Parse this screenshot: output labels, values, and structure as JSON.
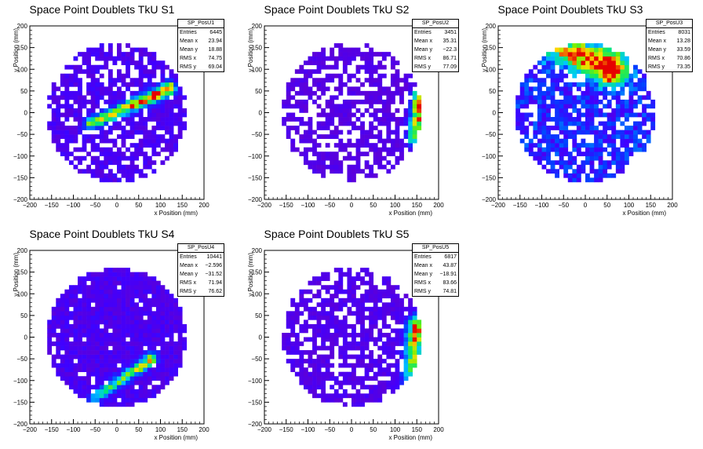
{
  "chart_data": [
    {
      "type": "heatmap",
      "title": "Space Point Doublets TkU S1",
      "xlabel": "x Position (mm)",
      "ylabel": "y Position (mm)",
      "xlim": [
        -200,
        200
      ],
      "ylim": [
        -200,
        200
      ],
      "xticks": [
        "−200",
        "−150",
        "−100",
        "−50",
        "0",
        "50",
        "100",
        "150",
        "200"
      ],
      "yticks": [
        "200",
        "150",
        "100",
        "50",
        "0",
        "−50",
        "−100",
        "−150",
        "−200"
      ],
      "bins": 40,
      "disk_radius": 160,
      "band": {
        "kind": "line",
        "x0": -60,
        "y0": -25,
        "x1": 120,
        "y1": 55,
        "peak": 1.0,
        "width": 10
      },
      "background_density": 0.12,
      "empty_fraction": 0.28,
      "stats": {
        "name": "SP_PosU1",
        "rows": [
          {
            "label": "Entries",
            "value": "6445"
          },
          {
            "label": "Mean x",
            "value": "23.94"
          },
          {
            "label": "Mean y",
            "value": "18.88"
          },
          {
            "label": "RMS x",
            "value": "74.75"
          },
          {
            "label": "RMS y",
            "value": "69.04"
          }
        ]
      }
    },
    {
      "type": "heatmap",
      "title": "Space Point Doublets TkU S2",
      "xlabel": "x Position (mm)",
      "ylabel": "y Position (mm)",
      "xlim": [
        -200,
        200
      ],
      "ylim": [
        -200,
        200
      ],
      "xticks": [
        "−200",
        "−150",
        "−100",
        "−50",
        "0",
        "50",
        "100",
        "150",
        "200"
      ],
      "yticks": [
        "200",
        "150",
        "100",
        "50",
        "0",
        "−50",
        "−100",
        "−150",
        "−200"
      ],
      "bins": 40,
      "disk_radius": 160,
      "band": {
        "kind": "vertical",
        "x0": 145,
        "y0": -60,
        "x1": 160,
        "y1": 40,
        "peak": 1.0,
        "width": 12
      },
      "background_density": 0.08,
      "empty_fraction": 0.38,
      "stats": {
        "name": "SP_PosU2",
        "rows": [
          {
            "label": "Entries",
            "value": "3451"
          },
          {
            "label": "Mean x",
            "value": "35.31"
          },
          {
            "label": "Mean y",
            "value": "−22.3"
          },
          {
            "label": "RMS x",
            "value": "86.71"
          },
          {
            "label": "RMS y",
            "value": "77.09"
          }
        ]
      }
    },
    {
      "type": "heatmap",
      "title": "Space Point Doublets TkU S3",
      "xlabel": "x Position (mm)",
      "ylabel": "y Position (mm)",
      "xlim": [
        -200,
        200
      ],
      "ylim": [
        -200,
        200
      ],
      "xticks": [
        "−200",
        "−150",
        "−100",
        "−50",
        "0",
        "50",
        "100",
        "150",
        "200"
      ],
      "yticks": [
        "200",
        "150",
        "100",
        "50",
        "0",
        "−50",
        "−100",
        "−150",
        "−200"
      ],
      "bins": 40,
      "disk_radius": 160,
      "band": {
        "kind": "top",
        "x0": -60,
        "y0": 150,
        "x1": 60,
        "y1": 100,
        "peak": 1.0,
        "width": 25
      },
      "background_density": 0.25,
      "empty_fraction": 0.22,
      "stats": {
        "name": "SP_PosU3",
        "rows": [
          {
            "label": "Entries",
            "value": "8031"
          },
          {
            "label": "Mean x",
            "value": "13.28"
          },
          {
            "label": "Mean y",
            "value": "33.59"
          },
          {
            "label": "RMS x",
            "value": "70.86"
          },
          {
            "label": "RMS y",
            "value": "73.35"
          }
        ]
      }
    },
    {
      "type": "heatmap",
      "title": "Space Point Doublets TkU S4",
      "xlabel": "x Position (mm)",
      "ylabel": "y Position (mm)",
      "xlim": [
        -200,
        200
      ],
      "ylim": [
        -200,
        200
      ],
      "xticks": [
        "−200",
        "−150",
        "−100",
        "−50",
        "0",
        "50",
        "100",
        "150",
        "200"
      ],
      "yticks": [
        "200",
        "150",
        "100",
        "50",
        "0",
        "−50",
        "−100",
        "−150",
        "−200"
      ],
      "bins": 40,
      "disk_radius": 160,
      "band": {
        "kind": "line",
        "x0": -50,
        "y0": -140,
        "x1": 80,
        "y1": -50,
        "peak": 0.7,
        "width": 9
      },
      "background_density": 0.12,
      "empty_fraction": 0.06,
      "stats": {
        "name": "SP_PosU4",
        "rows": [
          {
            "label": "Entries",
            "value": "10441"
          },
          {
            "label": "Mean x",
            "value": "−2.596"
          },
          {
            "label": "Mean y",
            "value": "−31.52"
          },
          {
            "label": "RMS x",
            "value": "71.94"
          },
          {
            "label": "RMS y",
            "value": "76.62"
          }
        ]
      }
    },
    {
      "type": "heatmap",
      "title": "Space Point Doublets TkU S5",
      "xlabel": "x Position (mm)",
      "ylabel": "y Position (mm)",
      "xlim": [
        -200,
        200
      ],
      "ylim": [
        -200,
        200
      ],
      "xticks": [
        "−200",
        "−150",
        "−100",
        "−50",
        "0",
        "50",
        "100",
        "150",
        "200"
      ],
      "yticks": [
        "200",
        "150",
        "100",
        "50",
        "0",
        "−50",
        "−100",
        "−150",
        "−200"
      ],
      "bins": 40,
      "disk_radius": 160,
      "band": {
        "kind": "vertical",
        "x0": 135,
        "y0": -100,
        "x1": 150,
        "y1": 30,
        "peak": 0.85,
        "width": 14
      },
      "background_density": 0.1,
      "empty_fraction": 0.3,
      "stats": {
        "name": "SP_PosU5",
        "rows": [
          {
            "label": "Entries",
            "value": "6817"
          },
          {
            "label": "Mean x",
            "value": "43.87"
          },
          {
            "label": "Mean y",
            "value": "−18.91"
          },
          {
            "label": "RMS x",
            "value": "83.66"
          },
          {
            "label": "RMS y",
            "value": "74.81"
          }
        ]
      }
    }
  ]
}
